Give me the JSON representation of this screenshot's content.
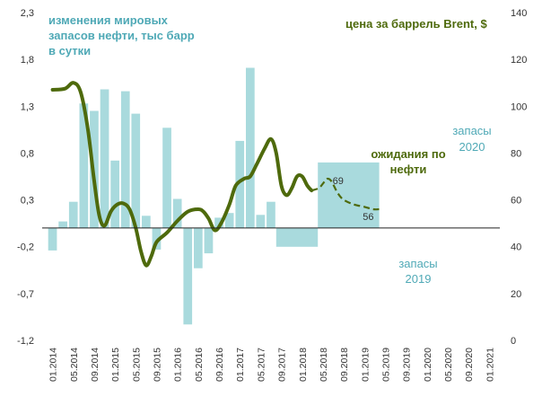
{
  "chart_data": {
    "type": "bar+line",
    "title_left": [
      "изменения мировых",
      "запасов нефти, тыс барр",
      "в сутки"
    ],
    "title_right": "цена за баррель Brent, $",
    "x_labels": [
      "01.2014",
      "05.2014",
      "09.2014",
      "01.2015",
      "05.2015",
      "09.2015",
      "01.2016",
      "05.2016",
      "09.2016",
      "01.2017",
      "05.2017",
      "09.2017",
      "01.2018",
      "05.2018",
      "09.2018",
      "01.2019",
      "05.2019",
      "09.2019",
      "01.2020",
      "05.2020",
      "09.2020",
      "01.2021"
    ],
    "y_left": {
      "min": -1.2,
      "max": 2.3,
      "ticks": [
        "2,3",
        "1,8",
        "1,3",
        "0,8",
        "0,3",
        "-0,2",
        "-0,7",
        "-1,2"
      ]
    },
    "y_right": {
      "min": 0,
      "max": 140,
      "ticks": [
        "140",
        "120",
        "100",
        "80",
        "60",
        "40",
        "20",
        "0"
      ]
    },
    "bars": {
      "name": "изменения мировых запасов нефти, тыс барр в сутки",
      "color": "#a9dadd",
      "points": [
        {
          "x": 0.0,
          "v": -0.24
        },
        {
          "x": 0.5,
          "v": 0.07
        },
        {
          "x": 1.0,
          "v": 0.28
        },
        {
          "x": 1.5,
          "v": 1.33
        },
        {
          "x": 2.0,
          "v": 1.25
        },
        {
          "x": 2.5,
          "v": 1.48
        },
        {
          "x": 3.0,
          "v": 0.72
        },
        {
          "x": 3.5,
          "v": 1.46
        },
        {
          "x": 4.0,
          "v": 1.22
        },
        {
          "x": 4.5,
          "v": 0.13
        },
        {
          "x": 5.0,
          "v": -0.23
        },
        {
          "x": 5.5,
          "v": 1.07
        },
        {
          "x": 6.0,
          "v": 0.31
        },
        {
          "x": 6.5,
          "v": -1.03
        },
        {
          "x": 7.0,
          "v": -0.43
        },
        {
          "x": 7.5,
          "v": -0.27
        },
        {
          "x": 8.0,
          "v": 0.11
        },
        {
          "x": 8.5,
          "v": 0.16
        },
        {
          "x": 9.0,
          "v": 0.93
        },
        {
          "x": 9.5,
          "v": 1.71
        },
        {
          "x": 10.0,
          "v": 0.14
        },
        {
          "x": 10.5,
          "v": 0.28
        }
      ]
    },
    "zones": [
      {
        "name": "запасы 2019",
        "label_lines": [
          "запасы",
          "2019"
        ],
        "x_from": 10.75,
        "x_to": 12.75,
        "value": -0.2
      },
      {
        "name": "запасы 2020",
        "label_lines": [
          "запасы",
          "2020"
        ],
        "x_from": 12.75,
        "x_to": 15.7,
        "value": 0.7
      }
    ],
    "line": {
      "name": "цена за баррель Brent, $",
      "color": "#4e6a0c",
      "points": [
        [
          0.0,
          107
        ],
        [
          0.6,
          107.5
        ],
        [
          1.0,
          110
        ],
        [
          1.35,
          106
        ],
        [
          1.7,
          90
        ],
        [
          2.0,
          68
        ],
        [
          2.25,
          53
        ],
        [
          2.5,
          49
        ],
        [
          2.8,
          55
        ],
        [
          3.1,
          58
        ],
        [
          3.4,
          58.5
        ],
        [
          3.7,
          56
        ],
        [
          4.0,
          48
        ],
        [
          4.25,
          38
        ],
        [
          4.5,
          32
        ],
        [
          4.75,
          36
        ],
        [
          5.0,
          42
        ],
        [
          5.5,
          46
        ],
        [
          6.0,
          51
        ],
        [
          6.5,
          55
        ],
        [
          7.0,
          56
        ],
        [
          7.25,
          55
        ],
        [
          7.5,
          52
        ],
        [
          7.8,
          47
        ],
        [
          8.1,
          50
        ],
        [
          8.5,
          58
        ],
        [
          8.8,
          66
        ],
        [
          9.2,
          69
        ],
        [
          9.5,
          70
        ],
        [
          9.8,
          75
        ],
        [
          10.2,
          82
        ],
        [
          10.5,
          86
        ],
        [
          10.75,
          80
        ],
        [
          11.0,
          66
        ],
        [
          11.25,
          62
        ],
        [
          11.5,
          65
        ],
        [
          11.75,
          70
        ],
        [
          12.0,
          70
        ],
        [
          12.25,
          66
        ],
        [
          12.45,
          64
        ]
      ],
      "forecast": {
        "name": "ожидания по нефти",
        "label_lines": [
          "ожидания по",
          "нефти"
        ],
        "points": [
          [
            12.45,
            64
          ],
          [
            12.8,
            65
          ],
          [
            13.0,
            67
          ],
          [
            13.2,
            69
          ],
          [
            13.4,
            68
          ],
          [
            13.7,
            63
          ],
          [
            14.0,
            60
          ],
          [
            14.5,
            58
          ],
          [
            15.0,
            57
          ],
          [
            15.4,
            56
          ],
          [
            15.7,
            56
          ]
        ],
        "labels": [
          {
            "x": 13.2,
            "y": 69,
            "text": "69"
          },
          {
            "x": 15.7,
            "y": 56,
            "text": "56"
          }
        ]
      }
    }
  }
}
